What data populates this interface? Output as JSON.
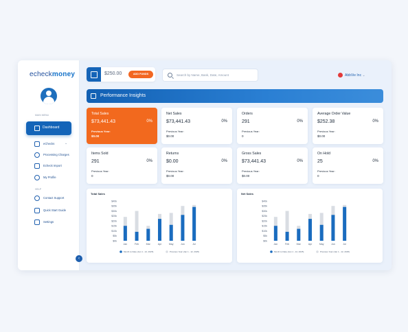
{
  "brand": {
    "part1": "echeck",
    "part2": "money"
  },
  "sidebar": {
    "section_main": "MAIN MENU",
    "dashboard_label": "Dashboard",
    "items": [
      {
        "label": "eChecks",
        "icon": "check-icon"
      },
      {
        "label": "Processing Charges",
        "icon": "dollar-icon"
      },
      {
        "label": "Echeck Import",
        "icon": "import-icon"
      },
      {
        "label": "My Profile",
        "icon": "user-icon"
      }
    ],
    "section_help": "HELP",
    "help_items": [
      {
        "label": "Contact Support",
        "icon": "phone-icon"
      },
      {
        "label": "Quick Start Guide",
        "icon": "guide-icon"
      },
      {
        "label": "Settings",
        "icon": "settings-icon"
      }
    ]
  },
  "header": {
    "balance": "$250.00",
    "add_funds": "ADD FUNDS",
    "search_placeholder": "Search by Name, Bank, Date, Amount",
    "user_name": "AbbVie Inc"
  },
  "banner_title": "Performance Insights",
  "cards": [
    {
      "title": "Total Sales",
      "value": "$73,441.43",
      "pct": "0%",
      "prev_label": "Previous Year:",
      "prev_value": "$0.00"
    },
    {
      "title": "Net Sales",
      "value": "$73,441.43",
      "pct": "0%",
      "prev_label": "Previous Year:",
      "prev_value": "$0.00"
    },
    {
      "title": "Orders",
      "value": "291",
      "pct": "0%",
      "prev_label": "Previous Year:",
      "prev_value": "0"
    },
    {
      "title": "Average Order Value",
      "value": "$252.38",
      "pct": "0%",
      "prev_label": "Previous Year:",
      "prev_value": "$0.00"
    },
    {
      "title": "Items Sold",
      "value": "291",
      "pct": "0%",
      "prev_label": "Previous Year:",
      "prev_value": "0"
    },
    {
      "title": "Returns",
      "value": "$0.00",
      "pct": "0%",
      "prev_label": "Previous Year:",
      "prev_value": "$0.00"
    },
    {
      "title": "Gross Sales",
      "value": "$73,441.43",
      "pct": "0%",
      "prev_label": "Previous Year:",
      "prev_value": "$0.00"
    },
    {
      "title": "On Hold",
      "value": "25",
      "pct": "0%",
      "prev_label": "Previous Year:",
      "prev_value": "0"
    }
  ],
  "colors": {
    "accent": "#1464b8",
    "highlight": "#f2691e",
    "bar_current": "#1a6cbf",
    "bar_previous": "#d9dde3"
  },
  "chart_data": [
    {
      "type": "bar",
      "title": "Total Sales",
      "categories": [
        "Jan",
        "Feb",
        "Mar",
        "Apr",
        "May",
        "Jun",
        "Jul"
      ],
      "yticks": [
        "$0k",
        "$5k",
        "$10k",
        "$15k",
        "$20k",
        "$25k",
        "$30k",
        "$35k",
        "$40k"
      ],
      "ylim": [
        0,
        40
      ],
      "series": [
        {
          "name": "Month to Date (Jan 1 - 12, 2025)",
          "values": [
            15,
            9,
            12,
            22,
            16,
            26,
            34
          ]
        },
        {
          "name": "Previous Year (Jan 1 - 12, 2025)",
          "values": [
            24,
            30,
            15,
            27,
            28,
            35,
            36
          ]
        }
      ],
      "grid": false,
      "legend": "bottom"
    },
    {
      "type": "bar",
      "title": "Net Sales",
      "categories": [
        "Jan",
        "Feb",
        "Mar",
        "Apr",
        "May",
        "Jun",
        "Jul"
      ],
      "yticks": [
        "$0k",
        "$5k",
        "$10k",
        "$15k",
        "$20k",
        "$25k",
        "$30k",
        "$35k",
        "$40k"
      ],
      "ylim": [
        0,
        40
      ],
      "series": [
        {
          "name": "Month to Date (Jan 1 - 12, 2025)",
          "values": [
            15,
            9,
            12,
            22,
            16,
            26,
            34
          ]
        },
        {
          "name": "Previous Year (Jan 1 - 12, 2025)",
          "values": [
            24,
            30,
            15,
            27,
            28,
            35,
            36
          ]
        }
      ],
      "grid": false,
      "legend": "bottom"
    }
  ]
}
